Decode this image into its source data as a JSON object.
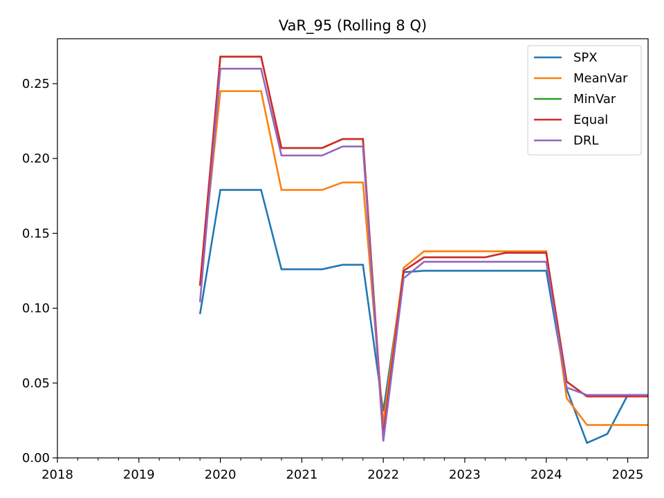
{
  "chart_data": {
    "type": "line",
    "title": "VaR_95 (Rolling 8 Q)",
    "xlabel": "",
    "ylabel": "",
    "xlim": [
      "2018-01-01",
      "2025-04-01"
    ],
    "ylim": [
      0,
      0.28
    ],
    "x_ticks": [
      "2018",
      "2019",
      "2020",
      "2021",
      "2022",
      "2023",
      "2024",
      "2025"
    ],
    "y_ticks": [
      "0.00",
      "0.05",
      "0.10",
      "0.15",
      "0.20",
      "0.25"
    ],
    "grid": false,
    "legend_position": "top-right",
    "x": [
      "2019-10-01",
      "2020-01-01",
      "2020-04-01",
      "2020-07-01",
      "2020-10-01",
      "2021-01-01",
      "2021-04-01",
      "2021-07-01",
      "2021-10-01",
      "2022-01-01",
      "2022-04-01",
      "2022-07-01",
      "2022-10-01",
      "2023-01-01",
      "2023-04-01",
      "2023-07-01",
      "2023-10-01",
      "2024-01-01",
      "2024-04-01",
      "2024-07-01",
      "2024-10-01",
      "2025-01-01",
      "2025-04-01"
    ],
    "series": [
      {
        "name": "SPX",
        "color": "#1f77b4",
        "values": [
          0.096,
          0.179,
          0.179,
          0.179,
          0.126,
          0.126,
          0.126,
          0.129,
          0.129,
          0.031,
          0.124,
          0.125,
          0.125,
          0.125,
          0.125,
          0.125,
          0.125,
          0.125,
          0.046,
          0.01,
          0.016,
          0.042,
          0.042
        ]
      },
      {
        "name": "MeanVar",
        "color": "#ff7f0e",
        "values": [
          0.115,
          0.245,
          0.245,
          0.245,
          0.179,
          0.179,
          0.179,
          0.184,
          0.184,
          0.023,
          0.127,
          0.138,
          0.138,
          0.138,
          0.138,
          0.138,
          0.138,
          0.138,
          0.04,
          0.022,
          0.022,
          0.022,
          0.022
        ]
      },
      {
        "name": "MinVar",
        "color": "#2ca02c",
        "values": [
          0.115,
          0.268,
          0.268,
          0.268,
          0.207,
          0.207,
          0.207,
          0.213,
          0.213,
          0.015,
          0.125,
          0.134,
          0.134,
          0.134,
          0.134,
          0.137,
          0.137,
          0.137,
          0.051,
          0.041,
          0.041,
          0.041,
          0.041
        ]
      },
      {
        "name": "Equal",
        "color": "#d62728",
        "values": [
          0.115,
          0.268,
          0.268,
          0.268,
          0.207,
          0.207,
          0.207,
          0.213,
          0.213,
          0.015,
          0.125,
          0.134,
          0.134,
          0.134,
          0.134,
          0.137,
          0.137,
          0.137,
          0.051,
          0.041,
          0.041,
          0.041,
          0.041
        ]
      },
      {
        "name": "DRL",
        "color": "#9467bd",
        "values": [
          0.104,
          0.26,
          0.26,
          0.26,
          0.202,
          0.202,
          0.202,
          0.208,
          0.208,
          0.011,
          0.12,
          0.131,
          0.131,
          0.131,
          0.131,
          0.131,
          0.131,
          0.131,
          0.047,
          0.042,
          0.042,
          0.042,
          0.042
        ]
      }
    ]
  }
}
